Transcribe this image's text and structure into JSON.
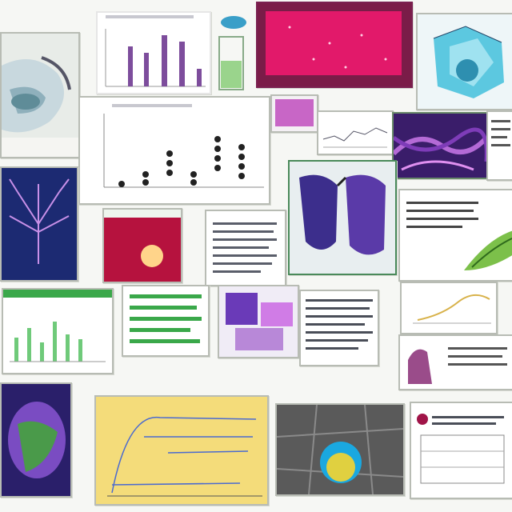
{
  "colors": {
    "background": "#f6f7f4",
    "frame": "#b8bcb4",
    "purple": "#7d4d9c",
    "magenta": "#c01464",
    "teal": "#44b4cc",
    "green": "#3aa84a",
    "yellow": "#f4dc7a",
    "navy": "#1c2a72"
  },
  "tiles": [
    {
      "name": "engine-render-tile",
      "icon": "engine-icon"
    },
    {
      "name": "purple-bar-chart-tile",
      "icon": "bar-chart-icon"
    },
    {
      "name": "flask-icon-tile",
      "icon": "flask-icon"
    },
    {
      "name": "magenta-monitor-tile",
      "icon": "monitor-icon"
    },
    {
      "name": "teal-crystal-tile",
      "icon": "crystal-icon"
    },
    {
      "name": "dot-plot-tile",
      "icon": "dot-plot-icon"
    },
    {
      "name": "magenta-swatch-tile",
      "icon": "swatch-icon"
    },
    {
      "name": "line-graph-tile",
      "icon": "line-chart-icon"
    },
    {
      "name": "purple-fiber-tile",
      "icon": "fiber-icon"
    },
    {
      "name": "text-note-tile",
      "icon": "text-icon"
    },
    {
      "name": "fractal-tree-tile",
      "icon": "tree-icon"
    },
    {
      "name": "red-sphere-tile",
      "icon": "sphere-icon"
    },
    {
      "name": "text-page-tile",
      "icon": "text-icon"
    },
    {
      "name": "purple-organ-tile",
      "icon": "organ-icon"
    },
    {
      "name": "green-leaf-tile",
      "icon": "leaf-icon"
    },
    {
      "name": "green-bar-chart-tile",
      "icon": "bar-chart-icon"
    },
    {
      "name": "green-list-tile",
      "icon": "list-icon"
    },
    {
      "name": "collage-tile",
      "icon": "collage-icon"
    },
    {
      "name": "text-column-tile",
      "icon": "text-icon"
    },
    {
      "name": "curve-chart-tile",
      "icon": "line-chart-icon"
    },
    {
      "name": "bust-figure-tile",
      "icon": "figure-icon"
    },
    {
      "name": "purple-hand-tile",
      "icon": "hand-icon"
    },
    {
      "name": "yellow-line-chart-tile",
      "icon": "line-chart-icon"
    },
    {
      "name": "grey-orb-tile",
      "icon": "orb-icon"
    },
    {
      "name": "schematic-tile",
      "icon": "schematic-icon"
    }
  ]
}
